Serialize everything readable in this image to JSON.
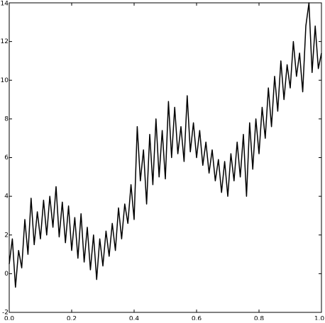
{
  "chart_data": {
    "type": "line",
    "x": [
      0,
      0.01,
      0.02,
      0.03,
      0.04,
      0.05,
      0.06,
      0.07,
      0.08,
      0.09,
      0.1,
      0.11,
      0.12,
      0.13,
      0.14,
      0.15,
      0.16,
      0.17,
      0.18,
      0.19,
      0.2,
      0.21,
      0.22,
      0.23,
      0.24,
      0.25,
      0.26,
      0.27,
      0.28,
      0.29,
      0.3,
      0.31,
      0.32,
      0.33,
      0.34,
      0.35,
      0.36,
      0.37,
      0.38,
      0.39,
      0.4,
      0.41,
      0.42,
      0.43,
      0.44,
      0.45,
      0.46,
      0.47,
      0.48,
      0.49,
      0.5,
      0.51,
      0.52,
      0.53,
      0.54,
      0.55,
      0.56,
      0.57,
      0.58,
      0.59,
      0.6,
      0.61,
      0.62,
      0.63,
      0.64,
      0.65,
      0.66,
      0.67,
      0.68,
      0.69,
      0.7,
      0.71,
      0.72,
      0.73,
      0.74,
      0.75,
      0.76,
      0.77,
      0.78,
      0.79,
      0.8,
      0.81,
      0.82,
      0.83,
      0.84,
      0.85,
      0.86,
      0.87,
      0.88,
      0.89,
      0.9,
      0.91,
      0.92,
      0.93,
      0.94,
      0.95,
      0.96,
      0.97,
      0.98,
      0.99,
      1.0
    ],
    "series": [
      {
        "color": "#000000",
        "values": [
          0.5,
          1.8,
          -0.7,
          1.2,
          0.3,
          2.8,
          1.0,
          3.9,
          1.5,
          3.2,
          1.8,
          3.8,
          2.0,
          4.0,
          2.4,
          4.5,
          1.9,
          3.7,
          1.6,
          3.5,
          1.2,
          2.9,
          0.8,
          3.1,
          0.6,
          2.4,
          0.2,
          2.0,
          -0.3,
          1.8,
          0.4,
          2.2,
          0.9,
          2.6,
          1.2,
          3.4,
          1.8,
          3.6,
          2.6,
          4.6,
          2.8,
          7.6,
          4.8,
          6.4,
          3.6,
          7.2,
          4.6,
          8.0,
          5.0,
          7.4,
          4.9,
          8.9,
          6.0,
          8.6,
          6.2,
          7.6,
          5.8,
          9.2,
          6.3,
          7.8,
          6.0,
          7.4,
          5.6,
          6.8,
          5.2,
          6.4,
          4.8,
          5.9,
          4.2,
          5.8,
          4.0,
          6.2,
          4.8,
          6.8,
          5.0,
          7.2,
          4.0,
          7.8,
          5.4,
          8.0,
          6.2,
          8.6,
          7.0,
          9.6,
          7.6,
          10.2,
          8.4,
          11.0,
          9.0,
          10.8,
          9.6,
          12.0,
          10.2,
          11.4,
          9.4,
          12.8,
          14.0,
          10.4,
          12.8,
          10.6,
          11.4
        ]
      }
    ],
    "xlim": [
      0,
      1
    ],
    "ylim": [
      -2,
      14
    ],
    "xticks": [
      {
        "value": 0,
        "label": "0.0"
      },
      {
        "value": 0.2,
        "label": "0.2"
      },
      {
        "value": 0.4,
        "label": "0.4"
      },
      {
        "value": 0.6,
        "label": "0.6"
      },
      {
        "value": 0.8,
        "label": "0.8"
      },
      {
        "value": 1,
        "label": "1.0"
      }
    ],
    "yticks": [
      -2,
      0,
      2,
      4,
      6,
      8,
      10,
      12,
      14
    ]
  }
}
